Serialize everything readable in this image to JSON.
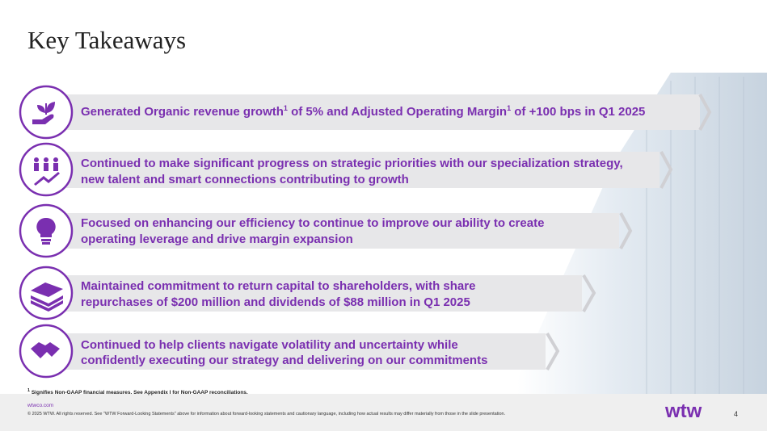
{
  "header": {
    "title": "Key Takeaways"
  },
  "takeaways": [
    {
      "lines": [
        [
          {
            "text": "Generated Organic revenue growth"
          },
          {
            "superscript": "1"
          },
          {
            "text": " of 5% and Adjusted Operating Margin"
          },
          {
            "superscript": "1"
          },
          {
            "text": " of +100 bps in Q1 2025"
          }
        ]
      ]
    },
    {
      "lines": [
        [
          {
            "text": "Continued to make significant progress on strategic priorities with our specialization strategy,"
          }
        ],
        [
          {
            "text": "new talent and smart connections contributing to growth"
          }
        ]
      ]
    },
    {
      "lines": [
        [
          {
            "text": "Focused on enhancing our efficiency to continue to improve our ability to create"
          }
        ],
        [
          {
            "text": "operating leverage and drive margin expansion"
          }
        ]
      ]
    },
    {
      "lines": [
        [
          {
            "text": "Maintained commitment to return capital to shareholders, with share"
          }
        ],
        [
          {
            "text": "repurchases of $200 million and dividends of $88 million in Q1 2025"
          }
        ]
      ]
    },
    {
      "lines": [
        [
          {
            "text": "Continued to help clients navigate volatility and uncertainty while"
          }
        ],
        [
          {
            "text": "confidently executing our strategy and delivering on our commitments"
          }
        ]
      ]
    }
  ],
  "footnote": {
    "marker": "1",
    "text": "Signifies Non-GAAP financial measures. See Appendix I for Non-GAAP reconciliations."
  },
  "footer": {
    "site": "wtwco.com",
    "legal": "© 2025 WTW. All rights reserved. See \"WTW Forward-Looking Statements\" above for information about forward-looking statements and cautionary language, including how actual results may differ materially from those in the slide presentation.",
    "logo": "wtw",
    "page": "4"
  }
}
